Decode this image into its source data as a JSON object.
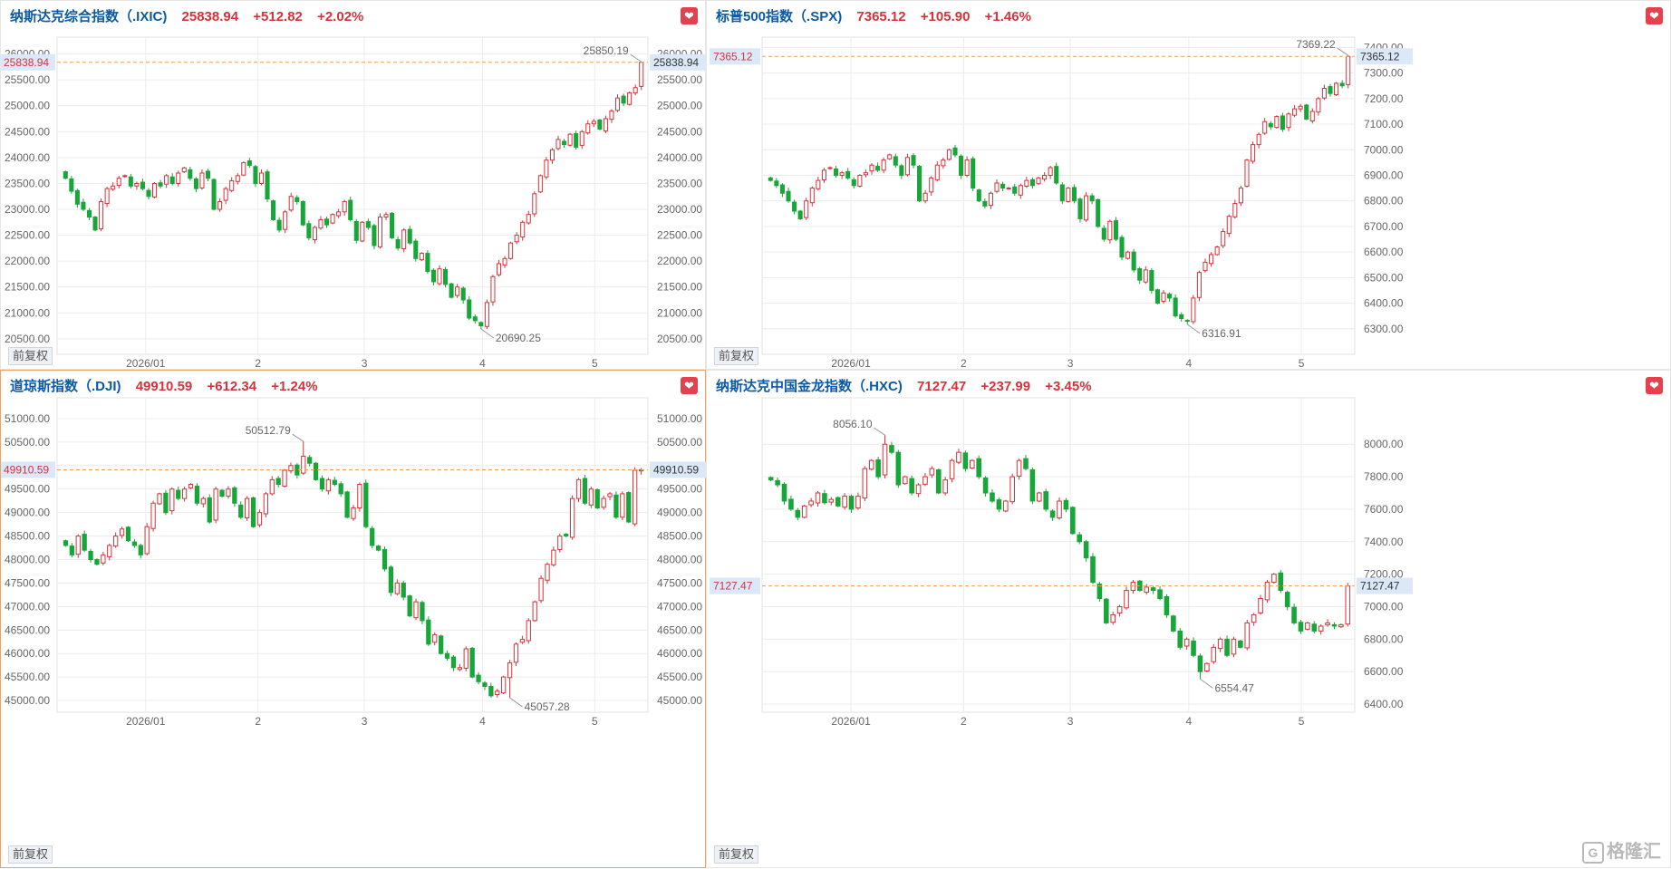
{
  "ui": {
    "adjust_button": "前复权",
    "favorite_icon": "heart-icon",
    "watermark": "格隆汇",
    "watermark_logo": "G"
  },
  "colors": {
    "up": "#d6333b",
    "down": "#17a639",
    "name": "#0b5aa6",
    "grid": "#ececec",
    "reference_line": "#f2a05a",
    "label_bg": "#dbe8f8"
  },
  "panels": [
    {
      "name": "纳斯达克综合指数（.IXIC)",
      "price": "25838.94",
      "change": "+512.82",
      "change_pct": "+2.02%",
      "y_ticks": [
        "26000.00",
        "25500.00",
        "25000.00",
        "24500.00",
        "24000.00",
        "23500.00",
        "23000.00",
        "22500.00",
        "22000.00",
        "21500.00",
        "21000.00",
        "20500.00"
      ],
      "ymin": 20200,
      "ymax": 26150,
      "x_labels": [
        "2026/01",
        "2",
        "3",
        "4",
        "5"
      ],
      "x_label_pos": [
        0.15,
        0.34,
        0.52,
        0.72,
        0.91
      ],
      "high_label": "25850.19",
      "low_label": "20690.25",
      "high": 25850.19,
      "low": 20690.25,
      "last": 25838.94,
      "high_index": 97,
      "low_index": 70,
      "closes": [
        23600,
        23350,
        23100,
        23000,
        22850,
        22600,
        23150,
        23400,
        23450,
        23600,
        23650,
        23450,
        23500,
        23400,
        23250,
        23500,
        23450,
        23650,
        23500,
        23700,
        23800,
        23600,
        23400,
        23700,
        23600,
        23000,
        23150,
        23400,
        23550,
        23650,
        23900,
        23850,
        23500,
        23700,
        23200,
        22800,
        22600,
        22950,
        23250,
        23150,
        22700,
        22450,
        22650,
        22800,
        22700,
        22900,
        22950,
        23150,
        22800,
        22400,
        22750,
        22650,
        22300,
        22850,
        22900,
        22450,
        22250,
        22600,
        22350,
        22050,
        22150,
        21800,
        21600,
        21850,
        21550,
        21300,
        21500,
        21250,
        20900,
        20850,
        20750,
        21200,
        21700,
        21950,
        22050,
        22350,
        22500,
        22750,
        22900,
        23300,
        23650,
        23950,
        24150,
        24350,
        24250,
        24450,
        24200,
        24500,
        24650,
        24700,
        24550,
        24750,
        24900,
        25150,
        25050,
        25250,
        25350,
        25838.94
      ]
    },
    {
      "name": "标普500指数（.SPX)",
      "price": "7365.12",
      "change": "+105.90",
      "change_pct": "+1.46%",
      "y_ticks": [
        "7400.00",
        "7300.00",
        "7200.00",
        "7100.00",
        "7000.00",
        "6900.00",
        "6800.00",
        "6700.00",
        "6600.00",
        "6500.00",
        "6400.00",
        "6300.00"
      ],
      "ymin": 6200,
      "ymax": 7405,
      "x_labels": [
        "2026/01",
        "2",
        "3",
        "4",
        "5"
      ],
      "x_label_pos": [
        0.15,
        0.34,
        0.52,
        0.72,
        0.91
      ],
      "high_label": "7369.22",
      "low_label": "6316.91",
      "high": 7369.22,
      "low": 6316.91,
      "last": 7365.12,
      "high_index": 97,
      "low_index": 70,
      "closes": [
        6880,
        6860,
        6830,
        6800,
        6760,
        6730,
        6800,
        6850,
        6880,
        6920,
        6930,
        6900,
        6910,
        6890,
        6860,
        6900,
        6910,
        6940,
        6920,
        6960,
        6980,
        6940,
        6900,
        6970,
        6940,
        6800,
        6830,
        6890,
        6940,
        6960,
        7000,
        6980,
        6900,
        6960,
        6850,
        6800,
        6780,
        6830,
        6870,
        6850,
        6850,
        6830,
        6860,
        6880,
        6860,
        6890,
        6900,
        6930,
        6870,
        6800,
        6850,
        6800,
        6730,
        6820,
        6800,
        6700,
        6650,
        6720,
        6650,
        6580,
        6600,
        6530,
        6490,
        6530,
        6450,
        6400,
        6440,
        6420,
        6350,
        6340,
        6330,
        6420,
        6520,
        6560,
        6590,
        6620,
        6680,
        6740,
        6790,
        6850,
        6960,
        7020,
        7060,
        7110,
        7090,
        7130,
        7080,
        7140,
        7160,
        7170,
        7120,
        7150,
        7200,
        7240,
        7220,
        7260,
        7250,
        7365.12
      ]
    },
    {
      "name": "道琼斯指数（.DJI)",
      "price": "49910.59",
      "change": "+612.34",
      "change_pct": "+1.24%",
      "y_ticks": [
        "51000.00",
        "50500.00",
        "50000.00",
        "49500.00",
        "49000.00",
        "48500.00",
        "48000.00",
        "47500.00",
        "47000.00",
        "46500.00",
        "46000.00",
        "45500.00",
        "45000.00"
      ],
      "ymin": 44750,
      "ymax": 51250,
      "x_labels": [
        "2026/01",
        "2",
        "3",
        "4",
        "5"
      ],
      "x_label_pos": [
        0.15,
        0.34,
        0.52,
        0.72,
        0.91
      ],
      "high_label": "50512.79",
      "low_label": "45057.28",
      "high": 50512.79,
      "low": 45057.28,
      "last": 49910.59,
      "high_index": 38,
      "low_index": 71,
      "closes": [
        48300,
        48100,
        48500,
        48200,
        48000,
        47900,
        48100,
        48300,
        48500,
        48650,
        48400,
        48300,
        48100,
        48700,
        49200,
        49400,
        49000,
        49500,
        49300,
        49500,
        49600,
        49200,
        49300,
        48800,
        49500,
        49350,
        49500,
        49200,
        48900,
        49300,
        48700,
        49000,
        49400,
        49700,
        49600,
        49900,
        50000,
        49800,
        50200,
        50050,
        49700,
        49500,
        49700,
        49600,
        49400,
        48900,
        49100,
        49600,
        48700,
        48300,
        48200,
        47800,
        47300,
        47500,
        47200,
        46800,
        47100,
        46700,
        46200,
        46400,
        46000,
        45900,
        45700,
        45700,
        46100,
        45500,
        45400,
        45300,
        45100,
        45200,
        45500,
        45800,
        46200,
        46300,
        46700,
        47100,
        47600,
        47900,
        48200,
        48500,
        48500,
        49300,
        49700,
        49200,
        49500,
        49100,
        49300,
        49400,
        48900,
        49400,
        48800,
        49900,
        49910.59
      ],
      "active": true
    },
    {
      "name": "纳斯达克中国金龙指数（.HXC)",
      "price": "7127.47",
      "change": "+237.99",
      "change_pct": "+3.45%",
      "y_ticks": [
        "8000.00",
        "7800.00",
        "7600.00",
        "7400.00",
        "7200.00",
        "7000.00",
        "6800.00",
        "6600.00",
        "6400.00"
      ],
      "ymin": 6350,
      "ymax": 8230,
      "x_labels": [
        "2026/01",
        "2",
        "3",
        "4",
        "5"
      ],
      "x_label_pos": [
        0.15,
        0.34,
        0.52,
        0.72,
        0.91
      ],
      "high_label": "8056.10",
      "low_label": "6554.47",
      "high": 8056.1,
      "low": 6554.47,
      "last": 7127.47,
      "high_index": 17,
      "low_index": 64,
      "closes": [
        7780,
        7750,
        7650,
        7600,
        7550,
        7620,
        7650,
        7700,
        7640,
        7660,
        7620,
        7680,
        7600,
        7680,
        7850,
        7900,
        7800,
        8000,
        7950,
        7750,
        7800,
        7700,
        7750,
        7800,
        7850,
        7700,
        7780,
        7900,
        7950,
        7850,
        7900,
        7800,
        7700,
        7650,
        7600,
        7650,
        7800,
        7900,
        7850,
        7650,
        7700,
        7600,
        7550,
        7650,
        7600,
        7450,
        7400,
        7300,
        7150,
        7050,
        6900,
        6950,
        7000,
        7100,
        7150,
        7100,
        7120,
        7100,
        7050,
        6950,
        6850,
        6750,
        6800,
        6700,
        6600,
        6650,
        6750,
        6800,
        6700,
        6800,
        6750,
        6900,
        6950,
        7050,
        7150,
        7200,
        7100,
        7000,
        6900,
        6850,
        6900,
        6850,
        6880,
        6900,
        6880,
        6889,
        7127.47
      ]
    }
  ]
}
